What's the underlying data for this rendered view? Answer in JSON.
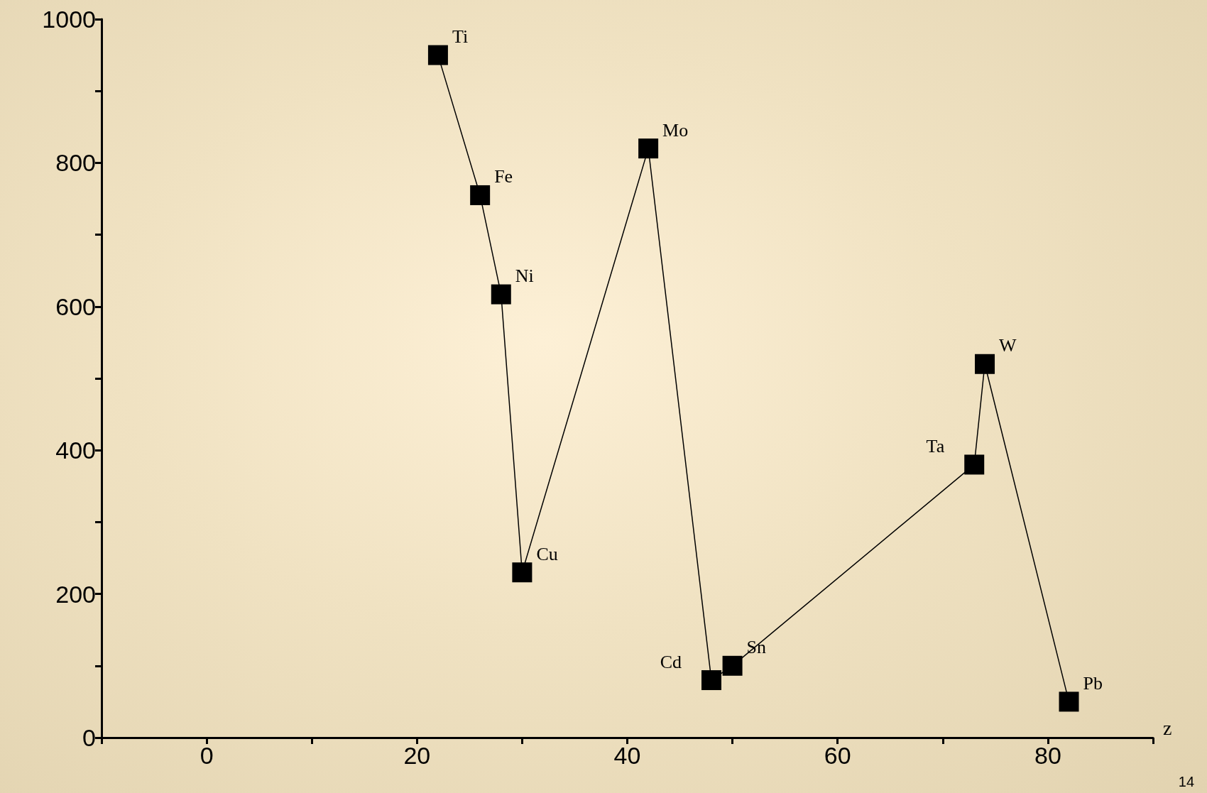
{
  "chart_data": {
    "type": "line",
    "xlabel": "z",
    "marker": "square",
    "line_style": "solid",
    "grid": false,
    "x": [
      22,
      26,
      28,
      30,
      42,
      48,
      50,
      73,
      74,
      82
    ],
    "series": [
      {
        "color": "#000000",
        "values": [
          950,
          755,
          617,
          230,
          820,
          80,
          100,
          380,
          520,
          50
        ]
      }
    ],
    "xlim": [
      -10,
      90
    ],
    "xticks": [
      {
        "value": -10,
        "label": null
      },
      0,
      {
        "value": 10,
        "label": null
      },
      20,
      {
        "value": 30,
        "label": null
      },
      40,
      {
        "value": 50,
        "label": null
      },
      60,
      {
        "value": 70,
        "label": null
      },
      80,
      {
        "value": 90,
        "label": null
      }
    ],
    "ylim": [
      0,
      1000
    ],
    "yticks": [
      0,
      {
        "value": 100,
        "label": null
      },
      200,
      {
        "value": 300,
        "label": null
      },
      400,
      {
        "value": 500,
        "label": null
      },
      600,
      {
        "value": 700,
        "label": null
      },
      800,
      {
        "value": 900,
        "label": null
      },
      1000
    ],
    "annotations": [
      {
        "text": "Ti",
        "x": 22,
        "y": 950
      },
      {
        "text": "Fe",
        "x": 26,
        "y": 755
      },
      {
        "text": "Ni",
        "x": 28,
        "y": 617
      },
      {
        "text": "Cu",
        "x": 30,
        "y": 230
      },
      {
        "text": "Mo",
        "x": 42,
        "y": 820
      },
      {
        "text": "Cd",
        "x": 48,
        "y": 80
      },
      {
        "text": "Sn",
        "x": 50,
        "y": 100
      },
      {
        "text": "Ta",
        "x": 73,
        "y": 380
      },
      {
        "text": "W",
        "x": 74,
        "y": 520
      },
      {
        "text": "Pb",
        "x": 82,
        "y": 50
      },
      "14"
    ]
  }
}
